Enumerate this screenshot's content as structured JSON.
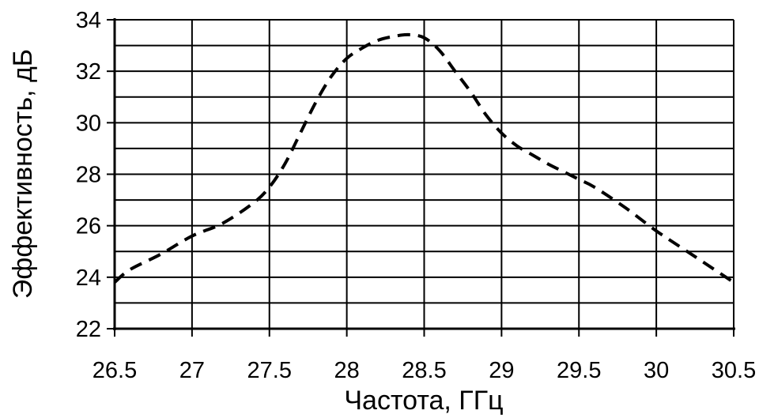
{
  "chart_data": {
    "type": "line",
    "title": "",
    "xlabel": "Частота, ГГц",
    "ylabel": "Эффективность, дБ",
    "xlim": [
      26.5,
      30.5
    ],
    "ylim": [
      22,
      34
    ],
    "x_ticks": [
      26.5,
      27,
      27.5,
      28,
      28.5,
      29,
      29.5,
      30,
      30.5
    ],
    "x_tick_labels": [
      "26.5",
      "27",
      "27.5",
      "28",
      "28.5",
      "29",
      "29.5",
      "30",
      "30.5"
    ],
    "y_ticks": [
      22,
      24,
      26,
      28,
      30,
      32,
      34
    ],
    "y_tick_labels": [
      "22",
      "24",
      "26",
      "28",
      "30",
      "32",
      "34"
    ],
    "y_minor_step": 1,
    "grid": true,
    "line_style": "dashed",
    "series": [
      {
        "line_color": "#000000",
        "x": [
          26.5,
          26.6,
          26.8,
          27.0,
          27.2,
          27.4,
          27.5,
          27.6,
          27.7,
          27.8,
          27.9,
          28.0,
          28.1,
          28.2,
          28.3,
          28.4,
          28.5,
          28.6,
          28.7,
          28.8,
          28.9,
          29.0,
          29.1,
          29.2,
          29.3,
          29.4,
          29.5,
          29.6,
          29.8,
          30.0,
          30.2,
          30.4,
          30.5
        ],
        "y": [
          23.8,
          24.3,
          24.9,
          25.6,
          26.1,
          26.9,
          27.5,
          28.4,
          29.6,
          30.8,
          31.8,
          32.5,
          32.9,
          33.2,
          33.35,
          33.42,
          33.3,
          32.8,
          32.0,
          31.2,
          30.3,
          29.6,
          29.1,
          28.75,
          28.4,
          28.1,
          27.8,
          27.5,
          26.7,
          25.8,
          25.0,
          24.2,
          23.8
        ]
      }
    ]
  }
}
